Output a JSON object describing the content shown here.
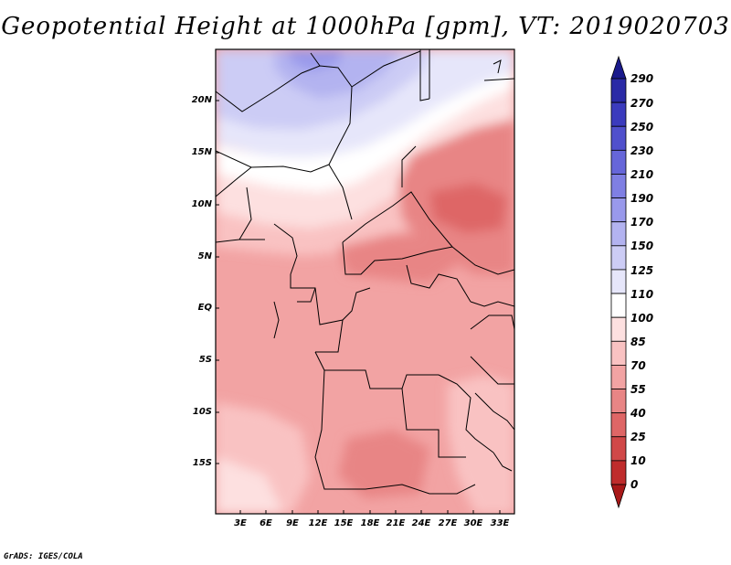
{
  "title": "Geopotential Height at 1000hPa [gpm], VT: 2019020703",
  "credit": "GrADS: IGES/COLA",
  "map": {
    "region": "Central Africa",
    "lat_ticks": [
      "20N",
      "15N",
      "10N",
      "5N",
      "EQ",
      "5S",
      "10S",
      "15S"
    ],
    "lon_ticks": [
      "3E",
      "6E",
      "9E",
      "12E",
      "15E",
      "18E",
      "21E",
      "24E",
      "27E",
      "30E",
      "33E"
    ]
  },
  "colorbar": {
    "levels": [
      "290",
      "270",
      "250",
      "230",
      "210",
      "190",
      "170",
      "150",
      "125",
      "110",
      "100",
      "85",
      "70",
      "55",
      "40",
      "25",
      "10",
      "0"
    ],
    "colors": [
      "#1a1a8c",
      "#2a2aa6",
      "#3b3bbd",
      "#5050cc",
      "#6666d9",
      "#7f7fe3",
      "#9999eb",
      "#b3b3f0",
      "#ccccf5",
      "#e6e6fa",
      "#ffffff",
      "#fde0e0",
      "#f9c2c2",
      "#f2a3a3",
      "#e88585",
      "#de6666",
      "#d04848",
      "#bf2c2c",
      "#a81818"
    ]
  }
}
